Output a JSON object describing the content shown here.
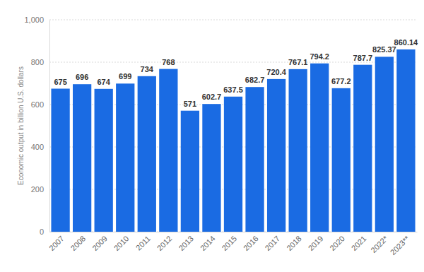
{
  "chart_data": {
    "type": "bar",
    "y_label": "Economic output in billion U.S. dollars",
    "categories": [
      "2007",
      "2008",
      "2009",
      "2010",
      "2011",
      "2012",
      "2013",
      "2014",
      "2015",
      "2016",
      "2017",
      "2018",
      "2019",
      "2020",
      "2021",
      "2022*",
      "2023**"
    ],
    "values": [
      675,
      696,
      674,
      699,
      734,
      768,
      571,
      602.7,
      637.5,
      682.7,
      720.4,
      767.1,
      794.2,
      677.2,
      787.7,
      825.37,
      860.14
    ],
    "color": "#1a6be3",
    "ylim": [
      0,
      1000
    ],
    "yticks": [
      0,
      200,
      400,
      600,
      800,
      {
        "value": 1000,
        "label": "1,000"
      }
    ],
    "grid": true,
    "data_labels": true
  }
}
